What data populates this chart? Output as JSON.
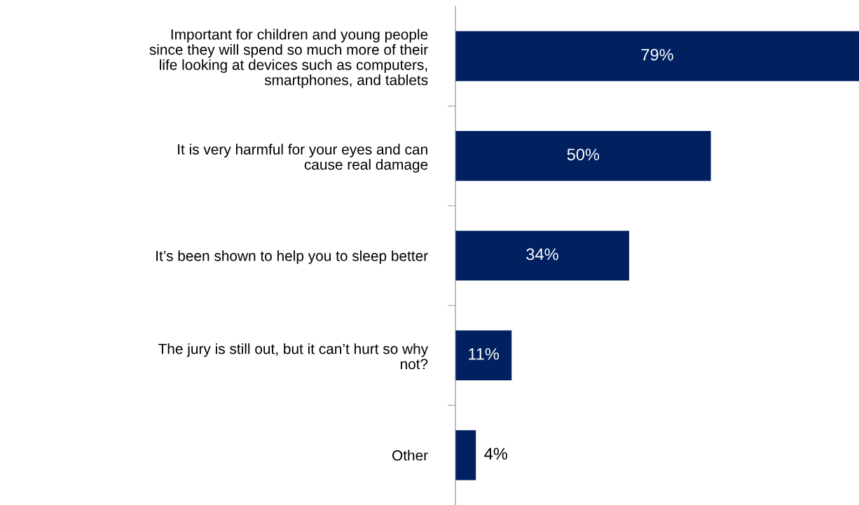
{
  "chart_data": {
    "type": "bar",
    "orientation": "horizontal",
    "categories": [
      "Important for children and young people\nsince they will spend so much more of their\nlife looking at devices such as computers,\nsmartphones, and tablets",
      "It is very harmful for your eyes and can\ncause real damage",
      "It’s been shown to help you to sleep better",
      "The jury is still out, but it can’t hurt so why\nnot?",
      "Other"
    ],
    "values": [
      79,
      50,
      34,
      11,
      4
    ],
    "value_labels": [
      "79%",
      "50%",
      "34%",
      "11%",
      "4%"
    ],
    "color": "#002060"
  }
}
